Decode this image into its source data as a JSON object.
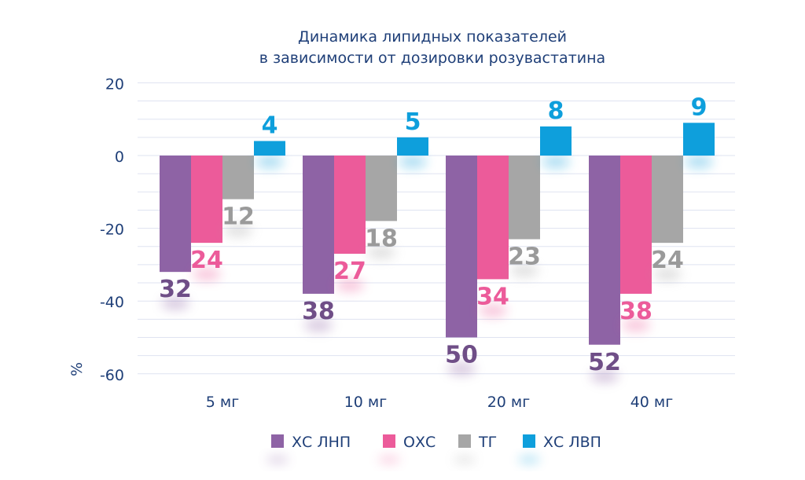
{
  "chart_data": {
    "type": "bar",
    "title": [
      "Динамика липидных показателей",
      "в зависимости от дозировки розувастатина"
    ],
    "ylabel": "%",
    "xlabel": "",
    "categories": [
      "5 мг",
      "10 мг",
      "20 мг",
      "40 мг"
    ],
    "ylim": [
      -60,
      20
    ],
    "yticks": [
      "20",
      "0",
      "-20",
      "-40",
      "-60"
    ],
    "grid": true,
    "legend_position": "bottom",
    "series": [
      {
        "name": "ХС ЛНП",
        "values": [
          -32,
          -38,
          -50,
          -52
        ],
        "labels": [
          "32",
          "38",
          "50",
          "52"
        ],
        "color": "#8e63a5",
        "label_color": "#6f4e87"
      },
      {
        "name": "ОХС",
        "values": [
          -24,
          -27,
          -34,
          -38
        ],
        "labels": [
          "24",
          "27",
          "34",
          "38"
        ],
        "color": "#ec5b9a",
        "label_color": "#ec5b9a"
      },
      {
        "name": "ТГ",
        "values": [
          -12,
          -18,
          -23,
          -24
        ],
        "labels": [
          "12",
          "18",
          "23",
          "24"
        ],
        "color": "#a6a6a6",
        "label_color": "#9a9a9a"
      },
      {
        "name": "ХС ЛВП",
        "values": [
          4,
          5,
          8,
          9
        ],
        "labels": [
          "4",
          "5",
          "8",
          "9"
        ],
        "color": "#0e9fdc",
        "label_color": "#0e9fdc"
      }
    ]
  }
}
